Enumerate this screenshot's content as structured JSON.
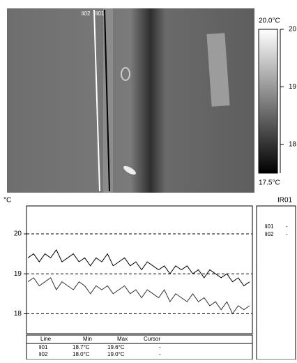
{
  "image": {
    "lines": [
      "li02",
      "li01"
    ]
  },
  "colorbar": {
    "max_label": "20.0°C",
    "min_label": "17.5°C",
    "lim": [
      17.5,
      20.0
    ],
    "ticks": [
      20,
      19,
      18
    ]
  },
  "panel": {
    "title": "IR01",
    "rows": [
      [
        "li01",
        "-"
      ],
      [
        "li02",
        "-"
      ]
    ]
  },
  "table": {
    "header": [
      "Line",
      "Min",
      "Max",
      "Cursor"
    ],
    "rows": [
      [
        "li01",
        "18.7°C",
        "19.6°C",
        "-"
      ],
      [
        "li02",
        "18.0°C",
        "19.0°C",
        "-"
      ]
    ]
  },
  "chart_data": {
    "type": "line",
    "y_label": "°C",
    "ylim": [
      17.5,
      20.7
    ],
    "yticks": [
      20,
      19,
      18
    ],
    "grid": true,
    "series": [
      {
        "name": "li01",
        "color": "#000000",
        "values": [
          19.4,
          19.5,
          19.3,
          19.5,
          19.4,
          19.6,
          19.3,
          19.4,
          19.5,
          19.3,
          19.4,
          19.2,
          19.4,
          19.3,
          19.5,
          19.2,
          19.3,
          19.4,
          19.2,
          19.3,
          19.1,
          19.3,
          19.2,
          19.1,
          19.2,
          19.0,
          19.2,
          19.1,
          19.2,
          19.0,
          19.1,
          18.9,
          19.1,
          19.0,
          18.9,
          19.0,
          18.8,
          18.9,
          18.7,
          18.8
        ]
      },
      {
        "name": "li02",
        "color": "#333333",
        "values": [
          18.8,
          18.9,
          18.7,
          18.8,
          18.9,
          18.6,
          18.8,
          18.7,
          18.6,
          18.8,
          18.7,
          18.5,
          18.7,
          18.6,
          18.7,
          18.5,
          18.6,
          18.7,
          18.5,
          18.6,
          18.4,
          18.6,
          18.5,
          18.4,
          18.6,
          18.3,
          18.5,
          18.4,
          18.3,
          18.5,
          18.3,
          18.4,
          18.2,
          18.3,
          18.1,
          18.3,
          18.0,
          18.2,
          18.1,
          18.2
        ]
      }
    ]
  }
}
